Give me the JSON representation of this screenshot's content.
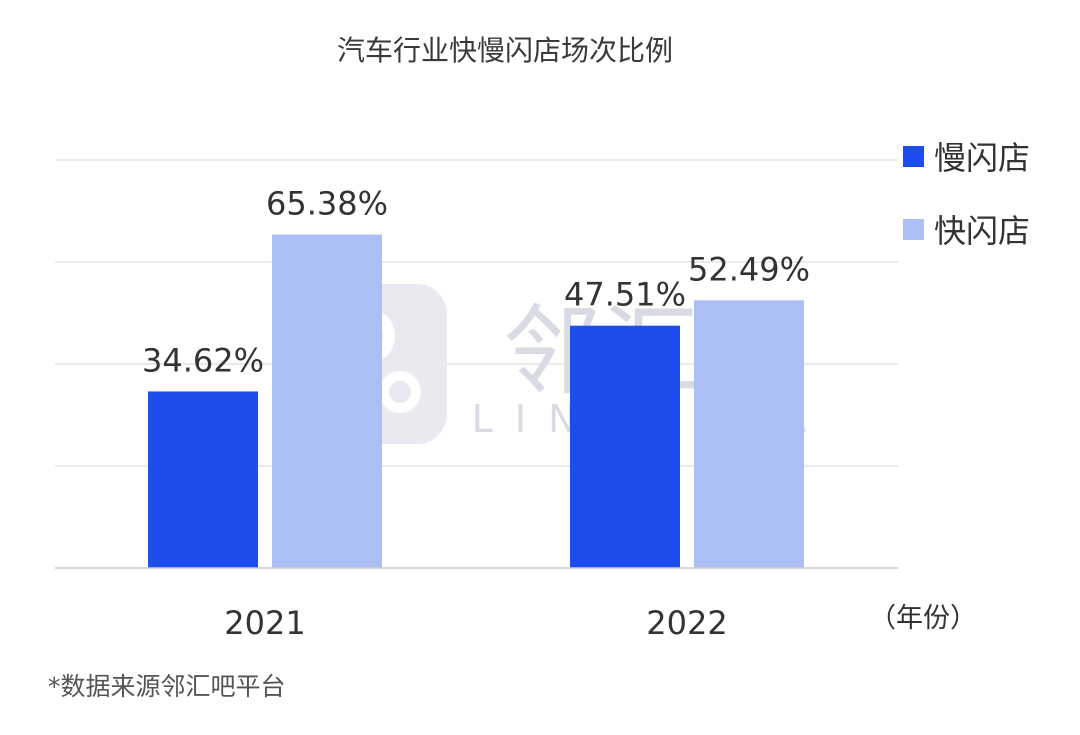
{
  "colors": {
    "slow": "#1e4ded",
    "fast": "#abbff5",
    "grid": "#dddddd",
    "watermark": "#e4e7ee"
  },
  "chart_data": {
    "type": "bar",
    "title": "汽车行业快慢闪店场次比例",
    "categories": [
      "2021",
      "2022"
    ],
    "series": [
      {
        "name": "慢闪店",
        "values": [
          34.62,
          47.51
        ],
        "labels": [
          "34.62%",
          "47.51%"
        ]
      },
      {
        "name": "快闪店",
        "values": [
          65.38,
          52.49
        ],
        "labels": [
          "65.38%",
          "52.49%"
        ]
      }
    ],
    "ylim": [
      0,
      80
    ],
    "x_unit": "（年份）",
    "grid": true,
    "legend_position": "right"
  },
  "note": "*数据来源邻汇吧平台",
  "watermark": {
    "brand_cn": "邻汇吧",
    "brand_en": "LINHUIBA"
  }
}
